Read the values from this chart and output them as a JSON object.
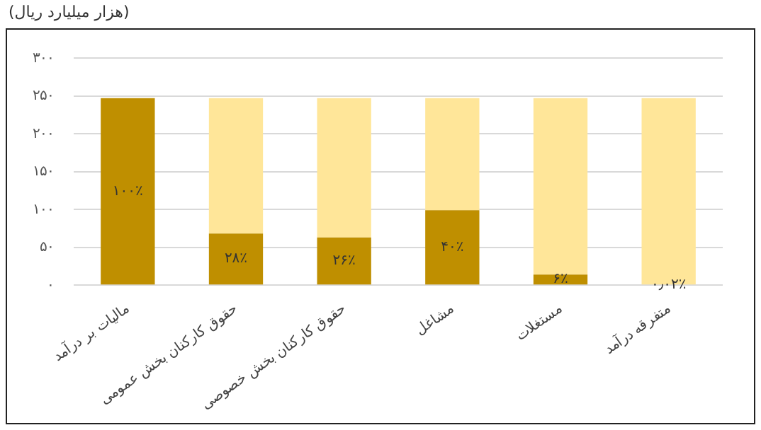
{
  "chart_data": {
    "type": "bar",
    "stacked": true,
    "ylabel": "(هزار میلیارد ریال)",
    "categories": [
      "مالیات بر درآمد",
      "حقوق کارکنان بخش عمومی",
      "حقوق کارکنان بخش خصوصی",
      "مشاغل",
      "مستغلات",
      "متفرقه درآمد"
    ],
    "series": [
      {
        "color": "#bf8f00",
        "values": [
          247,
          68,
          63,
          99,
          14,
          0
        ]
      },
      {
        "color": "#ffe699",
        "values": [
          0,
          179,
          184,
          148,
          233,
          247
        ]
      }
    ],
    "annotations": [
      "۱۰۰٪",
      "۲۸٪",
      "۲۶٪",
      "۴۰٪",
      "۶٪",
      "۰٫۰۲٪"
    ],
    "ylim": [
      0,
      300
    ],
    "yticks": [
      {
        "value": 0,
        "label": "۰"
      },
      {
        "value": 50,
        "label": "۵۰"
      },
      {
        "value": 100,
        "label": "۱۰۰"
      },
      {
        "value": 150,
        "label": "۱۵۰"
      },
      {
        "value": 200,
        "label": "۲۰۰"
      },
      {
        "value": 250,
        "label": "۲۵۰"
      },
      {
        "value": 300,
        "label": "۳۰۰"
      }
    ],
    "grid": "y",
    "legend": false
  }
}
